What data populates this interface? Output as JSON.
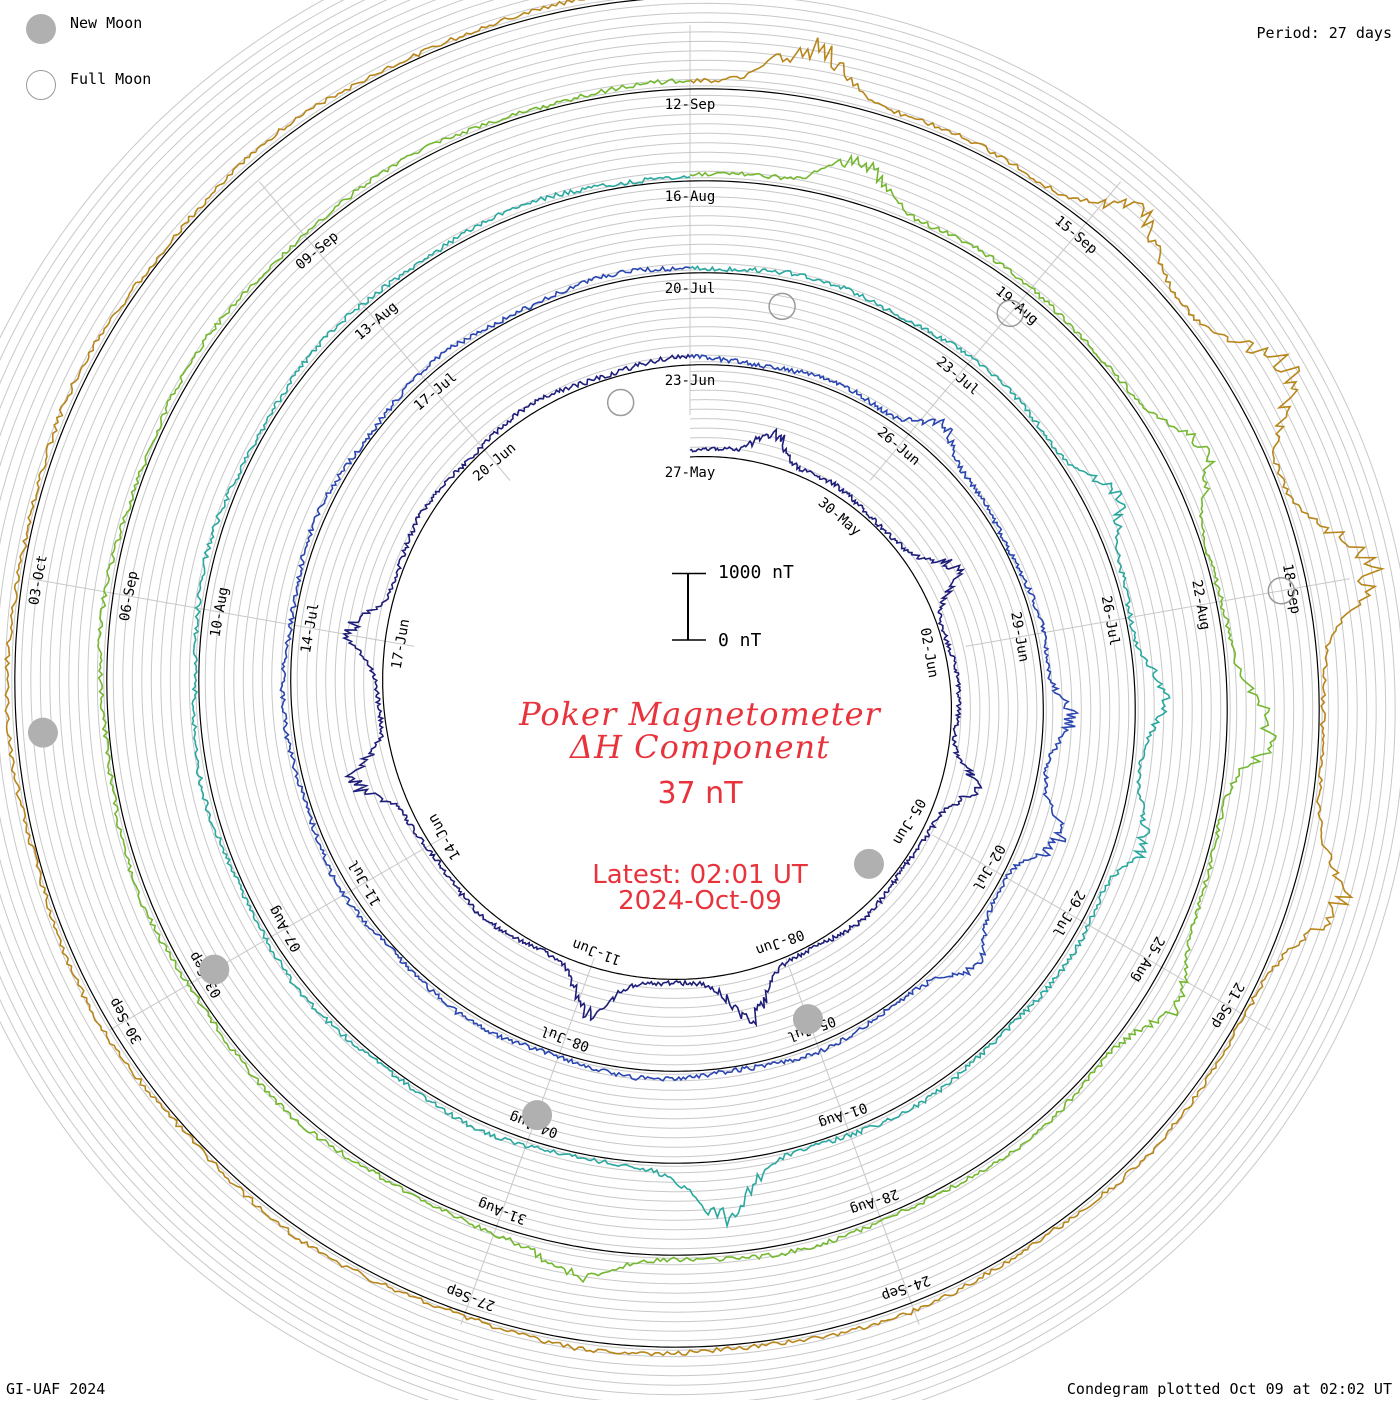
{
  "legend": {
    "new_moon_label": "New Moon",
    "full_moon_label": "Full Moon"
  },
  "period_label": "Period: 27 days",
  "credit": "GI-UAF 2024",
  "plotted_label": "Condegram plotted Oct 09 at 02:02 UT",
  "center": {
    "title": "Poker Magnetometer",
    "component": "ΔH Component",
    "current_value": "37 nT",
    "latest_label": "Latest: 02:01 UT",
    "latest_date": "2024-Oct-09"
  },
  "scale_bar": {
    "top_label": "1000 nT",
    "bottom_label": "0 nT"
  },
  "colors": {
    "text_accent": "#e8333c",
    "ring_lines": "#c8c8c8",
    "spoke_lines": "#c8c8c8",
    "baseline": "#000000",
    "moon_new": "#b0b0b0",
    "moon_full": "#9a9a9a"
  },
  "chart_data": {
    "type": "line",
    "layout": "spiral condegram",
    "period_days": 27,
    "start_date": "2024-05-27",
    "end_date": "2024-10-09",
    "units": "nT",
    "date_labels": [
      "27-May",
      "30-May",
      "02-Jun",
      "05-Jun",
      "08-Jun",
      "11-Jun",
      "14-Jun",
      "17-Jun",
      "20-Jun",
      "23-Jun",
      "26-Jun",
      "29-Jun",
      "02-Jul",
      "05-Jul",
      "08-Jul",
      "11-Jul",
      "14-Jul",
      "17-Jul",
      "20-Jul",
      "23-Jul",
      "26-Jul",
      "29-Jul",
      "01-Aug",
      "04-Aug",
      "07-Aug",
      "10-Aug",
      "13-Aug",
      "16-Aug",
      "19-Aug",
      "22-Aug",
      "25-Aug",
      "28-Aug",
      "31-Aug",
      "03-Sep",
      "06-Sep",
      "09-Sep",
      "12-Sep",
      "15-Sep",
      "18-Sep",
      "21-Sep",
      "24-Sep",
      "27-Sep",
      "30-Sep",
      "03-Oct"
    ],
    "new_moon_dates": [
      "06-Jun",
      "05-Jul",
      "04-Aug",
      "03-Sep",
      "02-Oct"
    ],
    "full_moon_dates": [
      "22-Jun",
      "21-Jul",
      "19-Aug",
      "18-Sep"
    ],
    "segments": [
      {
        "from": "27-May",
        "to": "23-Jun",
        "color": "#1e1e7a",
        "peaks": [
          [
            0.05,
            400
          ],
          [
            0.18,
            420
          ],
          [
            0.3,
            380
          ],
          [
            0.47,
            520
          ],
          [
            0.55,
            470
          ],
          [
            0.71,
            480
          ],
          [
            0.78,
            400
          ]
        ]
      },
      {
        "from": "23-Jun",
        "to": "20-Jul",
        "color": "#2a46b0",
        "peaks": [
          [
            0.12,
            300
          ],
          [
            0.26,
            330
          ],
          [
            0.31,
            420
          ],
          [
            0.37,
            300
          ]
        ]
      },
      {
        "from": "20-Jul",
        "to": "16-Aug",
        "color": "#2aa8a0",
        "peaks": [
          [
            0.18,
            340
          ],
          [
            0.25,
            330
          ],
          [
            0.3,
            320
          ],
          [
            0.49,
            620
          ]
        ]
      },
      {
        "from": "16-Aug",
        "to": "12-Sep",
        "color": "#74b830",
        "peaks": [
          [
            0.05,
            480
          ],
          [
            0.18,
            440
          ],
          [
            0.26,
            500
          ],
          [
            0.34,
            380
          ],
          [
            0.53,
            300
          ]
        ]
      },
      {
        "from": "12-Sep",
        "to": "09-Oct",
        "color": "#b8861a",
        "peaks": [
          [
            0.03,
            620
          ],
          [
            0.12,
            520
          ],
          [
            0.17,
            720
          ],
          [
            0.22,
            760
          ],
          [
            0.3,
            540
          ]
        ]
      }
    ]
  }
}
